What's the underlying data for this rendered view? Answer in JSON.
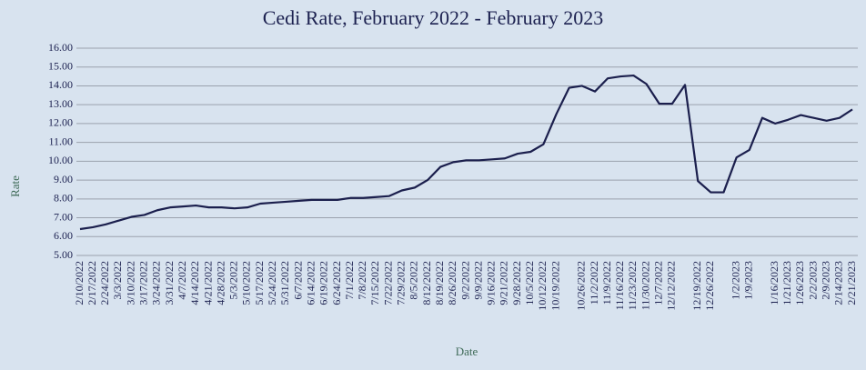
{
  "chart_data": {
    "type": "line",
    "title": "Cedi Rate, February 2022 - February 2023",
    "x_label": "Date",
    "y_label": "Rate",
    "color": "#1b1f4d",
    "grid": true,
    "ylim": [
      5,
      16
    ],
    "yticks": [
      {
        "value": 5,
        "label": "5.00"
      },
      {
        "value": 6,
        "label": "6.00"
      },
      {
        "value": 7,
        "label": "7.00"
      },
      {
        "value": 8,
        "label": "8.00"
      },
      {
        "value": 9,
        "label": "9.00"
      },
      {
        "value": 10,
        "label": "10.00"
      },
      {
        "value": 11,
        "label": "11.00"
      },
      {
        "value": 12,
        "label": "12.00"
      },
      {
        "value": 13,
        "label": "13.00"
      },
      {
        "value": 14,
        "label": "14.00"
      },
      {
        "value": 15,
        "label": "15.00"
      },
      {
        "value": 16,
        "label": "16.00"
      }
    ],
    "categories": [
      "2/10/2022",
      "2/17/2022",
      "2/24/2022",
      "3/3/2022",
      "3/10/2022",
      "3/17/2022",
      "3/24/2022",
      "3/31/2022",
      "4/7/2022",
      "4/14/2022",
      "4/21/2022",
      "4/28/2022",
      "5/3/2022",
      "5/10/2022",
      "5/17/2022",
      "5/24/2022",
      "5/31/2022",
      "6/7/2022",
      "6/14/2022",
      "6/19/2022",
      "6/24/2022",
      "7/1/2022",
      "7/8/2022",
      "7/15/2022",
      "7/22/2022",
      "7/29/2022",
      "8/5/2022",
      "8/12/2022",
      "8/19/2022",
      "8/26/2022",
      "9/2/2022",
      "9/9/2022",
      "9/16/2022",
      "9/21/2022",
      "9/28/2022",
      "10/5/2022",
      "10/12/2022",
      "10/19/2022",
      null,
      "10/26/2022",
      "11/2/2022",
      "11/9/2022",
      "11/16/2022",
      "11/23/2022",
      "11/30/2022",
      "12/7/2022",
      "12/12/2022",
      null,
      "12/19/2022",
      "12/26/2022",
      null,
      "1/2/2023",
      "1/9/2023",
      null,
      "1/16/2023",
      "1/21/2023",
      "1/26/2023",
      "2/2/2023",
      "2/9/2023",
      "2/14/2023",
      "2/21/2023"
    ],
    "values": [
      6.4,
      6.5,
      6.65,
      6.85,
      7.05,
      7.15,
      7.4,
      7.55,
      7.6,
      7.65,
      7.55,
      7.55,
      7.5,
      7.55,
      7.75,
      7.8,
      7.85,
      7.9,
      7.95,
      7.95,
      7.95,
      8.05,
      8.05,
      8.1,
      8.15,
      8.45,
      8.6,
      9.0,
      9.7,
      9.95,
      10.05,
      10.05,
      10.1,
      10.15,
      10.4,
      10.5,
      10.9,
      12.5,
      13.9,
      14.0,
      13.7,
      14.4,
      14.5,
      14.55,
      14.1,
      13.05,
      13.05,
      14.05,
      8.95,
      8.35,
      8.35,
      10.2,
      10.6,
      12.3,
      12.0,
      12.2,
      12.45,
      12.3,
      12.15,
      12.3,
      12.75
    ]
  }
}
